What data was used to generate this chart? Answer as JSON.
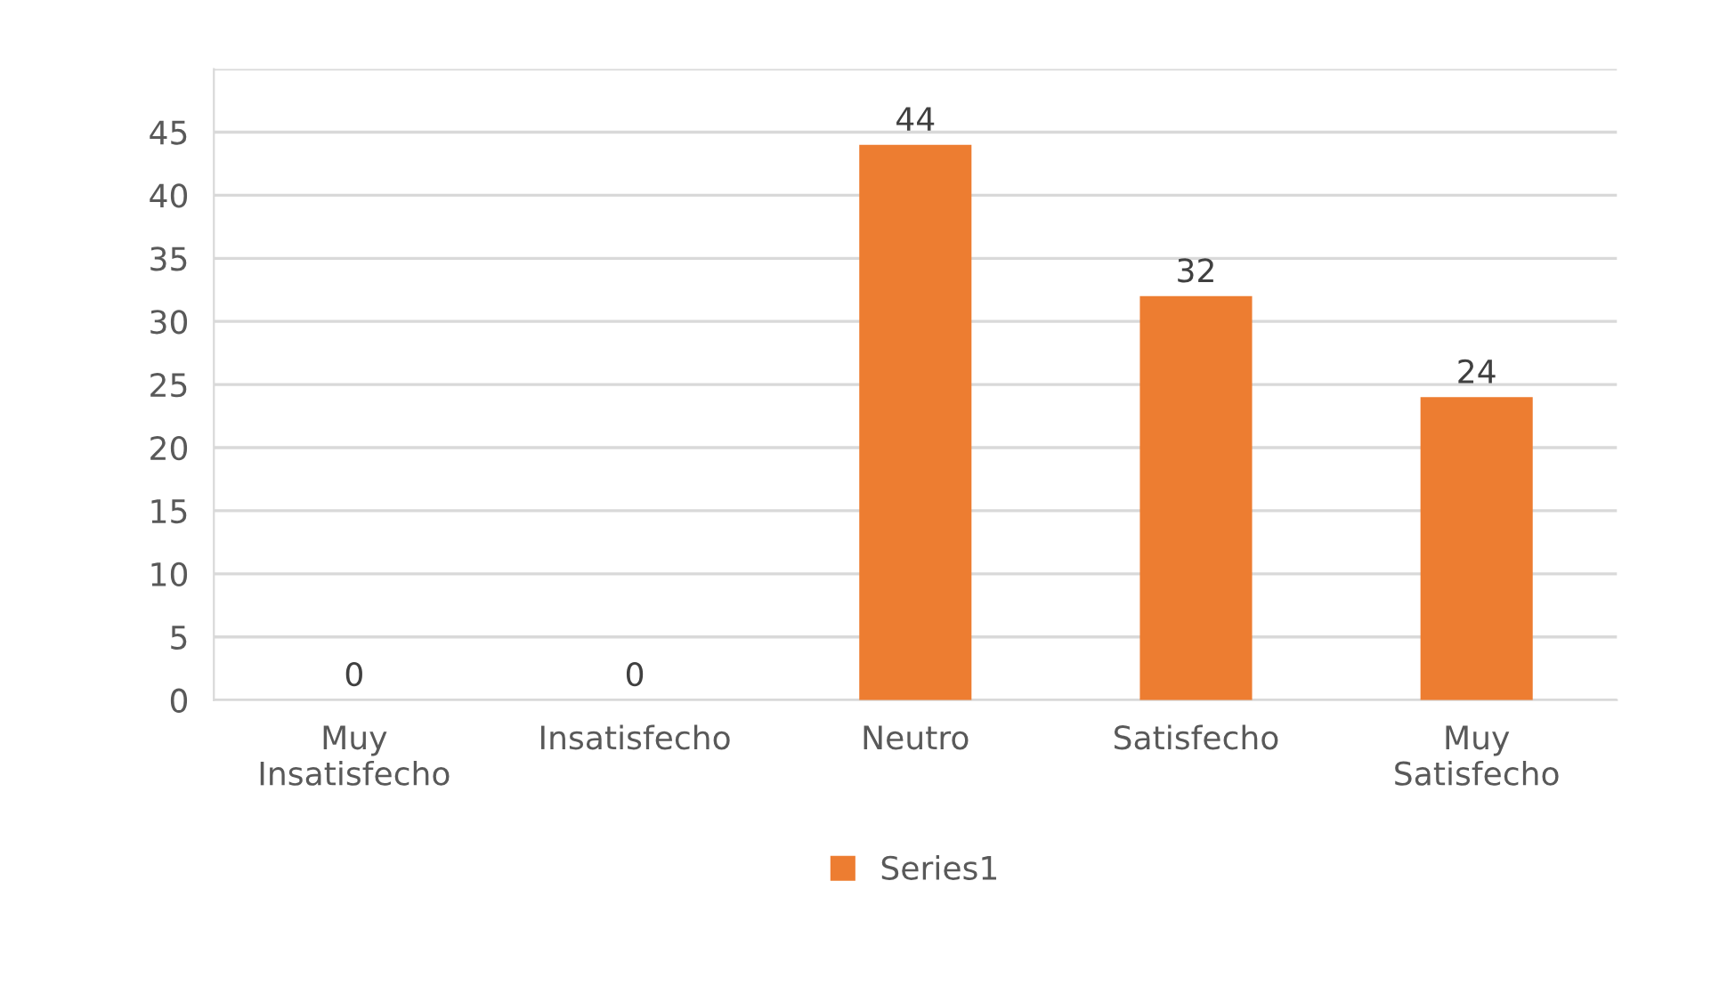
{
  "chart_data": {
    "type": "bar",
    "categories": [
      "Muy\nInsatisfecho",
      "Insatisfecho",
      "Neutro",
      "Satisfecho",
      "Muy\nSatisfecho"
    ],
    "series": [
      {
        "name": "Series1",
        "color": "#ed7d31",
        "values": [
          0,
          0,
          44,
          32,
          24
        ]
      }
    ],
    "ylim": [
      0,
      50
    ],
    "yticks": [
      0,
      5,
      10,
      15,
      20,
      25,
      30,
      35,
      40,
      45,
      {
        "value": 50,
        "label": null
      }
    ],
    "grid": "y",
    "data_labels": true,
    "legend": "bottom"
  }
}
